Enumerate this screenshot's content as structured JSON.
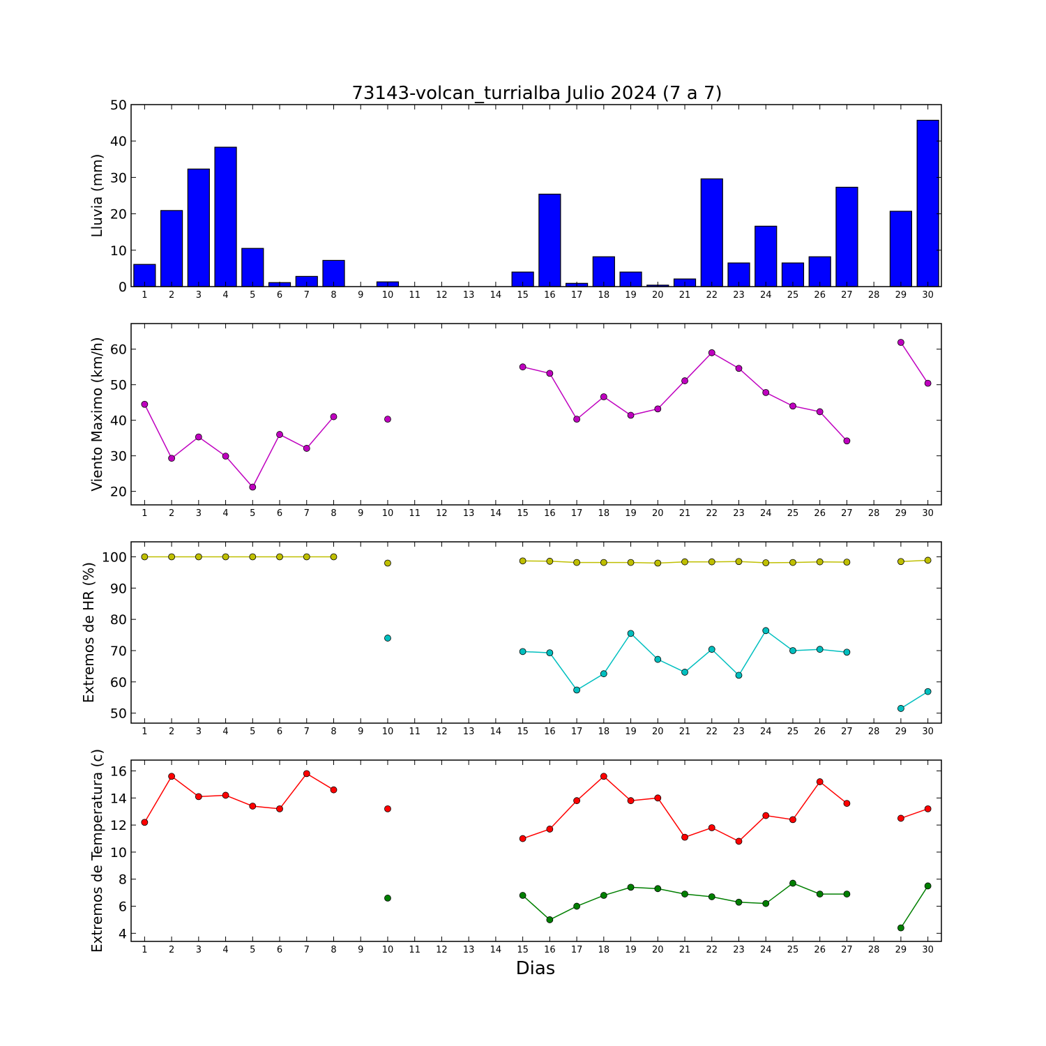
{
  "title": "73143-volcan_turrialba Julio 2024  (7 a 7)",
  "xlabel": "Dias",
  "x_ticks": [
    1,
    2,
    3,
    4,
    5,
    6,
    7,
    8,
    9,
    10,
    11,
    12,
    13,
    14,
    15,
    16,
    17,
    18,
    19,
    20,
    21,
    22,
    23,
    24,
    25,
    26,
    27,
    28,
    29,
    30
  ],
  "chart_data": [
    {
      "type": "bar",
      "ylabel": "Lluvia (mm)",
      "ylim": [
        0,
        50
      ],
      "yticks": [
        0,
        10,
        20,
        30,
        40,
        50
      ],
      "series": [
        {
          "color": "#0000ff",
          "x": [
            1,
            2,
            3,
            4,
            5,
            6,
            7,
            8,
            10,
            15,
            16,
            17,
            18,
            19,
            20,
            21,
            22,
            23,
            24,
            25,
            26,
            27,
            29,
            30
          ],
          "values": [
            6.1,
            20.9,
            32.3,
            38.3,
            10.5,
            1.1,
            2.8,
            7.2,
            1.3,
            4.0,
            25.4,
            0.9,
            8.2,
            4.0,
            0.4,
            2.1,
            29.6,
            6.5,
            16.6,
            6.5,
            8.2,
            27.3,
            20.7,
            45.7
          ]
        }
      ]
    },
    {
      "type": "line",
      "ylabel": "Viento Maximo (km/h)",
      "ylim": [
        16.2,
        67.2
      ],
      "yticks": [
        20,
        30,
        40,
        50,
        60
      ],
      "series": [
        {
          "color": "#bf00bf",
          "segments": [
            {
              "x": [
                1,
                2,
                3,
                4,
                5,
                6,
                7,
                8
              ],
              "y": [
                44.5,
                29.3,
                35.3,
                29.9,
                21.2,
                36.0,
                32.1,
                41.0
              ]
            },
            {
              "x": [
                10
              ],
              "y": [
                40.3
              ]
            },
            {
              "x": [
                15,
                16,
                17,
                18,
                19,
                20,
                21,
                22,
                23,
                24,
                25,
                26,
                27
              ],
              "y": [
                55.0,
                53.2,
                40.3,
                46.6,
                41.4,
                43.2,
                51.1,
                59.0,
                54.6,
                47.8,
                44.0,
                42.4,
                34.2
              ]
            },
            {
              "x": [
                29,
                30
              ],
              "y": [
                61.9,
                50.4
              ]
            }
          ]
        }
      ]
    },
    {
      "type": "line",
      "ylabel": "Extremos de HR (%)",
      "ylim": [
        46.8,
        104.8
      ],
      "yticks": [
        50,
        60,
        70,
        80,
        90,
        100
      ],
      "series": [
        {
          "color": "#bfbf00",
          "segments": [
            {
              "x": [
                1,
                2,
                3,
                4,
                5,
                6,
                7,
                8
              ],
              "y": [
                100,
                100,
                100,
                100,
                100,
                100,
                100,
                100
              ]
            },
            {
              "x": [
                10
              ],
              "y": [
                98.0
              ]
            },
            {
              "x": [
                15,
                16,
                17,
                18,
                19,
                20,
                21,
                22,
                23,
                24,
                25,
                26,
                27
              ],
              "y": [
                98.7,
                98.6,
                98.2,
                98.2,
                98.2,
                98.0,
                98.4,
                98.4,
                98.5,
                98.1,
                98.2,
                98.4,
                98.3
              ]
            },
            {
              "x": [
                29,
                30
              ],
              "y": [
                98.5,
                98.9
              ]
            }
          ]
        },
        {
          "color": "#00bfbf",
          "segments": [
            {
              "x": [
                10
              ],
              "y": [
                74.0
              ]
            },
            {
              "x": [
                15,
                16,
                17,
                18,
                19,
                20,
                21,
                22,
                23,
                24,
                25,
                26,
                27
              ],
              "y": [
                69.7,
                69.3,
                57.4,
                62.6,
                75.5,
                67.2,
                63.1,
                70.4,
                62.1,
                76.4,
                70.0,
                70.4,
                69.5
              ]
            },
            {
              "x": [
                29,
                30
              ],
              "y": [
                51.5,
                56.9
              ]
            }
          ]
        }
      ]
    },
    {
      "type": "line",
      "ylabel": "Extremos de Temperatura (c)",
      "ylim": [
        3.4,
        16.8
      ],
      "yticks": [
        4,
        6,
        8,
        10,
        12,
        14,
        16
      ],
      "series": [
        {
          "color": "#ff0000",
          "segments": [
            {
              "x": [
                1,
                2,
                3,
                4,
                5,
                6,
                7,
                8
              ],
              "y": [
                12.2,
                15.6,
                14.1,
                14.2,
                13.4,
                13.2,
                15.8,
                14.6
              ]
            },
            {
              "x": [
                10
              ],
              "y": [
                13.2
              ]
            },
            {
              "x": [
                15,
                16,
                17,
                18,
                19,
                20,
                21,
                22,
                23,
                24,
                25,
                26,
                27
              ],
              "y": [
                11.0,
                11.7,
                13.8,
                15.6,
                13.8,
                14.0,
                11.1,
                11.8,
                10.8,
                12.7,
                12.4,
                15.2,
                13.6
              ]
            },
            {
              "x": [
                29,
                30
              ],
              "y": [
                12.5,
                13.2
              ]
            }
          ]
        },
        {
          "color": "#007f00",
          "segments": [
            {
              "x": [
                10
              ],
              "y": [
                6.6
              ]
            },
            {
              "x": [
                15,
                16,
                17,
                18,
                19,
                20,
                21,
                22,
                23,
                24,
                25,
                26,
                27
              ],
              "y": [
                6.8,
                5.0,
                6.0,
                6.8,
                7.4,
                7.3,
                6.9,
                6.7,
                6.3,
                6.2,
                7.7,
                6.9,
                6.9
              ]
            },
            {
              "x": [
                29,
                30
              ],
              "y": [
                4.4,
                7.5
              ]
            }
          ]
        }
      ]
    }
  ]
}
